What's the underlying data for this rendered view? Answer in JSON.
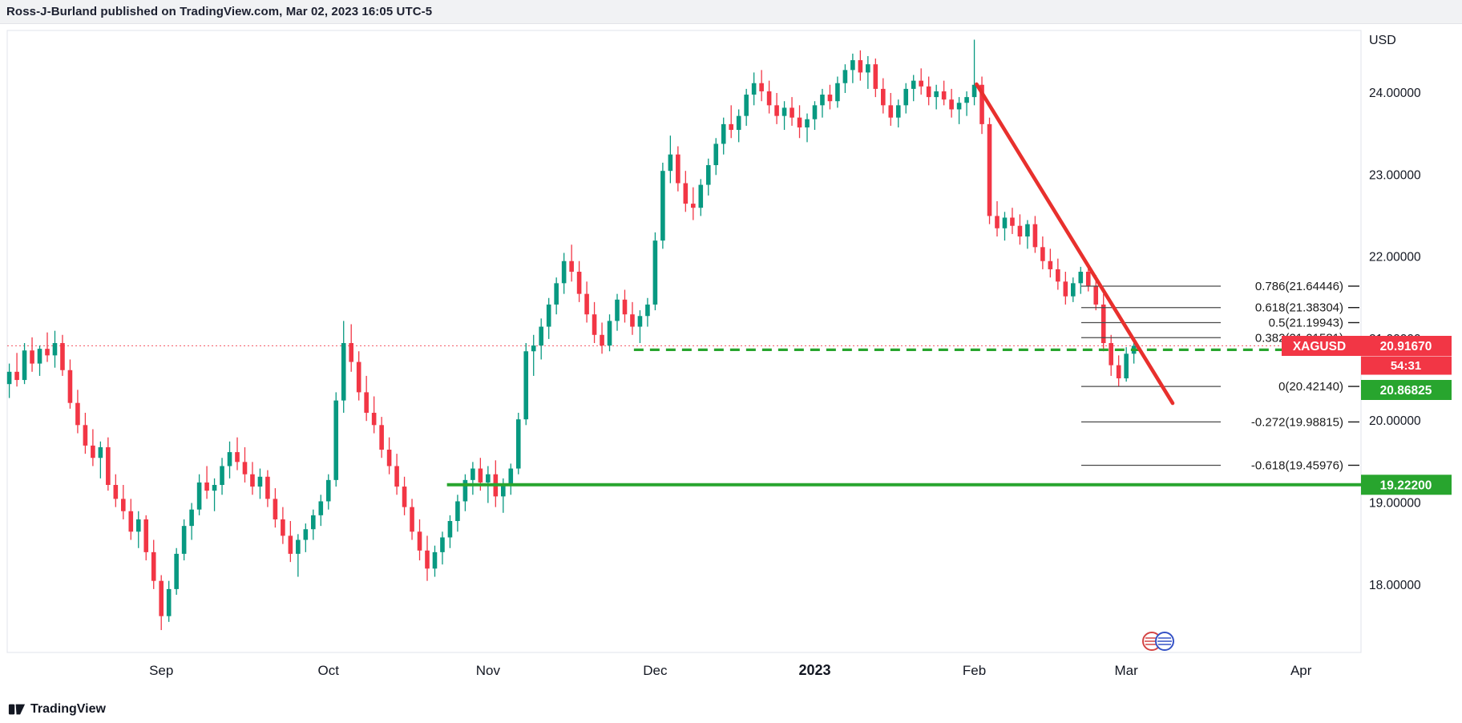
{
  "header": {
    "title": "Ross-J-Burland published on TradingView.com, Mar 02, 2023 16:05 UTC-5"
  },
  "footer": {
    "brand": "TradingView"
  },
  "chart_data": {
    "type": "candlestick",
    "symbol": "XAGUSD",
    "colors": {
      "up": "#089981",
      "down": "#f23645",
      "trend_red": "#e8302d",
      "line_green": "#28a52e",
      "axis_text": "#131722",
      "fib_line": "#4a4a4a",
      "fib_text": "#1a1a1a"
    },
    "y_axis": {
      "title": "USD",
      "range": [
        17.2,
        24.76
      ],
      "ticks": [
        {
          "label": "24.00000",
          "value": 24
        },
        {
          "label": "23.00000",
          "value": 23
        },
        {
          "label": "22.00000",
          "value": 22
        },
        {
          "label": "21.00000",
          "value": 21
        },
        {
          "label": "20.00000",
          "value": 20
        },
        {
          "label": "19.00000",
          "value": 19
        },
        {
          "label": "18.00000",
          "value": 18
        }
      ]
    },
    "x_axis": {
      "labels": [
        {
          "text": "Sep",
          "index": 20,
          "bold": false
        },
        {
          "text": "Oct",
          "index": 42,
          "bold": false
        },
        {
          "text": "Nov",
          "index": 63,
          "bold": false
        },
        {
          "text": "Dec",
          "index": 85,
          "bold": false
        },
        {
          "text": "2023",
          "index": 106,
          "bold": true
        },
        {
          "text": "Feb",
          "index": 127,
          "bold": false
        },
        {
          "text": "Mar",
          "index": 147,
          "bold": false
        },
        {
          "text": "Apr",
          "index": 170,
          "bold": false
        }
      ]
    },
    "fib_levels": [
      {
        "label": "0.786(21.64446)",
        "value": 21.64446
      },
      {
        "label": "0.618(21.38304)",
        "value": 21.38304
      },
      {
        "label": "0.5(21.19943)",
        "value": 21.19943
      },
      {
        "label": "0.382(21.01581)",
        "value": 21.01581
      },
      {
        "label": "0(20.42140)",
        "value": 20.4214
      },
      {
        "label": "-0.272(19.98815)",
        "value": 19.98815
      },
      {
        "label": "-0.618(19.45976)",
        "value": 19.45976
      }
    ],
    "lines": {
      "current_price_line": {
        "price": 20.9167
      },
      "dashed_support": {
        "price": 20.86825,
        "start_index": 82.2
      },
      "horizontal_support": {
        "price": 19.222,
        "start_index": 57.6
      },
      "trend_line": {
        "start_index": 127.3,
        "start_price": 24.107,
        "end_index": 153.1,
        "end_price": 20.217
      }
    },
    "badges": {
      "symbol": "XAGUSD",
      "last_price": "20.91670",
      "countdown": "54:31",
      "dashed_support_price": "20.86825",
      "horizontal_support_price": "19.22200"
    },
    "candles": [
      [
        20.45,
        20.7,
        20.28,
        20.6
      ],
      [
        20.6,
        20.83,
        20.42,
        20.5
      ],
      [
        20.5,
        20.95,
        20.45,
        20.86
      ],
      [
        20.86,
        21.02,
        20.6,
        20.7
      ],
      [
        20.7,
        20.92,
        20.55,
        20.88
      ],
      [
        20.88,
        21.08,
        20.72,
        20.8
      ],
      [
        20.8,
        21.1,
        20.65,
        20.95
      ],
      [
        20.95,
        21.05,
        20.55,
        20.62
      ],
      [
        20.62,
        20.75,
        20.15,
        20.22
      ],
      [
        20.22,
        20.38,
        19.85,
        19.95
      ],
      [
        19.95,
        20.1,
        19.6,
        19.7
      ],
      [
        19.7,
        19.9,
        19.45,
        19.55
      ],
      [
        19.55,
        19.75,
        19.3,
        19.68
      ],
      [
        19.68,
        19.8,
        19.15,
        19.22
      ],
      [
        19.22,
        19.35,
        18.95,
        19.05
      ],
      [
        19.05,
        19.22,
        18.8,
        18.9
      ],
      [
        18.9,
        19.05,
        18.55,
        18.65
      ],
      [
        18.65,
        18.9,
        18.45,
        18.8
      ],
      [
        18.8,
        18.85,
        18.3,
        18.4
      ],
      [
        18.4,
        18.55,
        17.95,
        18.05
      ],
      [
        18.05,
        18.12,
        17.45,
        17.62
      ],
      [
        17.62,
        18.05,
        17.55,
        17.95
      ],
      [
        17.95,
        18.45,
        17.88,
        18.38
      ],
      [
        18.38,
        18.8,
        18.3,
        18.72
      ],
      [
        18.72,
        19.0,
        18.55,
        18.92
      ],
      [
        18.92,
        19.35,
        18.85,
        19.25
      ],
      [
        19.25,
        19.45,
        19.05,
        19.15
      ],
      [
        19.15,
        19.3,
        18.9,
        19.22
      ],
      [
        19.22,
        19.55,
        19.1,
        19.45
      ],
      [
        19.45,
        19.75,
        19.3,
        19.62
      ],
      [
        19.62,
        19.8,
        19.4,
        19.5
      ],
      [
        19.5,
        19.68,
        19.25,
        19.35
      ],
      [
        19.35,
        19.5,
        19.1,
        19.2
      ],
      [
        19.2,
        19.42,
        19.05,
        19.32
      ],
      [
        19.32,
        19.4,
        18.95,
        19.05
      ],
      [
        19.05,
        19.18,
        18.7,
        18.8
      ],
      [
        18.8,
        18.95,
        18.5,
        18.6
      ],
      [
        18.6,
        18.78,
        18.28,
        18.38
      ],
      [
        18.38,
        18.62,
        18.1,
        18.55
      ],
      [
        18.55,
        18.75,
        18.4,
        18.68
      ],
      [
        18.68,
        18.92,
        18.55,
        18.85
      ],
      [
        18.85,
        19.1,
        18.72,
        19.02
      ],
      [
        19.02,
        19.35,
        18.92,
        19.28
      ],
      [
        19.28,
        20.35,
        19.2,
        20.25
      ],
      [
        20.25,
        21.22,
        20.1,
        20.95
      ],
      [
        20.95,
        21.18,
        20.6,
        20.72
      ],
      [
        20.72,
        20.85,
        20.25,
        20.35
      ],
      [
        20.35,
        20.55,
        20.0,
        20.1
      ],
      [
        20.1,
        20.3,
        19.85,
        19.95
      ],
      [
        19.95,
        20.05,
        19.55,
        19.65
      ],
      [
        19.65,
        19.8,
        19.35,
        19.45
      ],
      [
        19.45,
        19.6,
        19.1,
        19.2
      ],
      [
        19.2,
        19.32,
        18.85,
        18.95
      ],
      [
        18.95,
        19.05,
        18.55,
        18.65
      ],
      [
        18.65,
        18.8,
        18.3,
        18.42
      ],
      [
        18.42,
        18.6,
        18.05,
        18.2
      ],
      [
        18.2,
        18.48,
        18.1,
        18.4
      ],
      [
        18.4,
        18.65,
        18.25,
        18.58
      ],
      [
        18.58,
        18.85,
        18.45,
        18.78
      ],
      [
        18.78,
        19.1,
        18.65,
        19.02
      ],
      [
        19.02,
        19.35,
        18.9,
        19.28
      ],
      [
        19.28,
        19.5,
        19.1,
        19.42
      ],
      [
        19.42,
        19.55,
        19.15,
        19.25
      ],
      [
        19.25,
        19.45,
        19.0,
        19.35
      ],
      [
        19.35,
        19.52,
        18.95,
        19.08
      ],
      [
        19.08,
        19.3,
        18.88,
        19.22
      ],
      [
        19.22,
        19.48,
        19.1,
        19.42
      ],
      [
        19.42,
        20.1,
        19.35,
        20.02
      ],
      [
        20.02,
        20.95,
        19.95,
        20.85
      ],
      [
        20.85,
        21.05,
        20.55,
        20.92
      ],
      [
        20.92,
        21.25,
        20.75,
        21.15
      ],
      [
        21.15,
        21.5,
        21.0,
        21.42
      ],
      [
        21.42,
        21.75,
        21.3,
        21.68
      ],
      [
        21.68,
        22.05,
        21.55,
        21.95
      ],
      [
        21.95,
        22.15,
        21.7,
        21.82
      ],
      [
        21.82,
        21.95,
        21.45,
        21.55
      ],
      [
        21.55,
        21.7,
        21.2,
        21.3
      ],
      [
        21.3,
        21.45,
        20.95,
        21.05
      ],
      [
        21.05,
        21.2,
        20.82,
        20.92
      ],
      [
        20.92,
        21.3,
        20.85,
        21.22
      ],
      [
        21.22,
        21.55,
        21.1,
        21.48
      ],
      [
        21.48,
        21.6,
        21.2,
        21.3
      ],
      [
        21.3,
        21.45,
        21.05,
        21.15
      ],
      [
        21.15,
        21.35,
        20.95,
        21.28
      ],
      [
        21.28,
        21.5,
        21.15,
        21.42
      ],
      [
        21.42,
        22.3,
        21.35,
        22.2
      ],
      [
        22.2,
        23.15,
        22.1,
        23.05
      ],
      [
        23.05,
        23.48,
        22.9,
        23.25
      ],
      [
        23.25,
        23.35,
        22.8,
        22.9
      ],
      [
        22.9,
        23.05,
        22.55,
        22.65
      ],
      [
        22.65,
        22.85,
        22.45,
        22.6
      ],
      [
        22.6,
        22.95,
        22.5,
        22.88
      ],
      [
        22.88,
        23.2,
        22.75,
        23.12
      ],
      [
        23.12,
        23.45,
        23.0,
        23.38
      ],
      [
        23.38,
        23.7,
        23.25,
        23.62
      ],
      [
        23.62,
        23.85,
        23.45,
        23.55
      ],
      [
        23.55,
        23.8,
        23.4,
        23.72
      ],
      [
        23.72,
        24.05,
        23.6,
        23.98
      ],
      [
        23.98,
        24.25,
        23.85,
        24.12
      ],
      [
        24.12,
        24.28,
        23.9,
        24.02
      ],
      [
        24.02,
        24.15,
        23.75,
        23.85
      ],
      [
        23.85,
        24.0,
        23.62,
        23.72
      ],
      [
        23.72,
        23.9,
        23.55,
        23.82
      ],
      [
        23.82,
        23.95,
        23.6,
        23.7
      ],
      [
        23.7,
        23.85,
        23.45,
        23.58
      ],
      [
        23.58,
        23.75,
        23.4,
        23.68
      ],
      [
        23.68,
        23.9,
        23.55,
        23.85
      ],
      [
        23.85,
        24.05,
        23.7,
        23.98
      ],
      [
        23.98,
        24.1,
        23.8,
        23.9
      ],
      [
        23.9,
        24.2,
        23.82,
        24.12
      ],
      [
        24.12,
        24.35,
        24.0,
        24.28
      ],
      [
        24.28,
        24.48,
        24.12,
        24.4
      ],
      [
        24.4,
        24.52,
        24.15,
        24.25
      ],
      [
        24.25,
        24.45,
        24.05,
        24.35
      ],
      [
        24.35,
        24.42,
        23.95,
        24.05
      ],
      [
        24.05,
        24.18,
        23.75,
        23.85
      ],
      [
        23.85,
        24.0,
        23.6,
        23.7
      ],
      [
        23.7,
        23.92,
        23.58,
        23.85
      ],
      [
        23.85,
        24.12,
        23.75,
        24.05
      ],
      [
        24.05,
        24.22,
        23.9,
        24.15
      ],
      [
        24.15,
        24.3,
        23.98,
        24.08
      ],
      [
        24.08,
        24.2,
        23.85,
        23.95
      ],
      [
        23.95,
        24.1,
        23.8,
        24.02
      ],
      [
        24.02,
        24.15,
        23.85,
        23.92
      ],
      [
        23.92,
        24.05,
        23.7,
        23.8
      ],
      [
        23.8,
        23.95,
        23.62,
        23.88
      ],
      [
        23.88,
        24.02,
        23.72,
        23.95
      ],
      [
        23.95,
        24.65,
        23.85,
        24.1
      ],
      [
        24.1,
        24.2,
        23.5,
        23.62
      ],
      [
        23.62,
        23.7,
        22.4,
        22.5
      ],
      [
        22.5,
        22.68,
        22.25,
        22.35
      ],
      [
        22.35,
        22.55,
        22.2,
        22.48
      ],
      [
        22.48,
        22.6,
        22.28,
        22.38
      ],
      [
        22.38,
        22.52,
        22.15,
        22.25
      ],
      [
        22.25,
        22.45,
        22.1,
        22.4
      ],
      [
        22.4,
        22.5,
        22.05,
        22.12
      ],
      [
        22.12,
        22.25,
        21.85,
        21.95
      ],
      [
        21.95,
        22.1,
        21.75,
        21.85
      ],
      [
        21.85,
        21.98,
        21.6,
        21.7
      ],
      [
        21.7,
        21.82,
        21.42,
        21.52
      ],
      [
        21.52,
        21.75,
        21.45,
        21.68
      ],
      [
        21.68,
        21.88,
        21.55,
        21.82
      ],
      [
        21.82,
        21.92,
        21.58,
        21.65
      ],
      [
        21.65,
        21.78,
        21.35,
        21.42
      ],
      [
        21.42,
        21.55,
        20.85,
        20.95
      ],
      [
        20.95,
        21.05,
        20.55,
        20.68
      ],
      [
        20.68,
        20.8,
        20.42,
        20.52
      ],
      [
        20.52,
        20.9,
        20.48,
        20.82
      ],
      [
        20.82,
        21.0,
        20.7,
        20.9167
      ]
    ]
  }
}
